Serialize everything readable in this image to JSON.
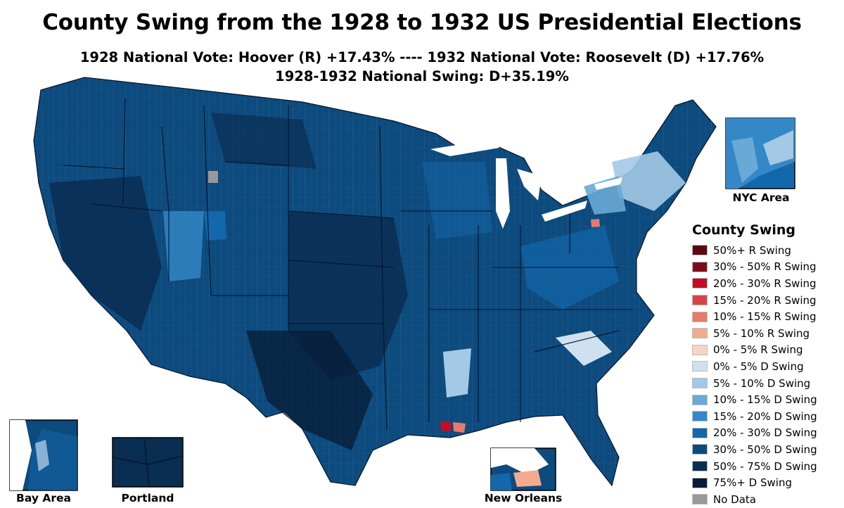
{
  "title": "County Swing from the 1928 to 1932 US Presidential Elections",
  "subtitle_line1": "1928 National Vote: Hoover (R) +17.43% ---- 1932 National Vote: Roosevelt (D) +17.76%",
  "subtitle_line2": "1928-1932 National Swing: D+35.19%",
  "legend": {
    "title": "County Swing",
    "items": [
      {
        "label": "50%+ R Swing",
        "color": "#5a0b12"
      },
      {
        "label": "30% - 50% R Swing",
        "color": "#7d0d1a"
      },
      {
        "label": "20% - 30% R Swing",
        "color": "#c40d24"
      },
      {
        "label": "15% - 20% R Swing",
        "color": "#d8434a"
      },
      {
        "label": "10% - 15% R Swing",
        "color": "#e57b6b"
      },
      {
        "label": "5% - 10% R Swing",
        "color": "#f2ab90"
      },
      {
        "label": "0% - 5% R Swing",
        "color": "#f8d4c6"
      },
      {
        "label": "0% - 5% D Swing",
        "color": "#cfe1f0"
      },
      {
        "label": "5% - 10% D Swing",
        "color": "#a3c9e6"
      },
      {
        "label": "10% - 15% D Swing",
        "color": "#6aa9d5"
      },
      {
        "label": "15% - 20% D Swing",
        "color": "#3488c8"
      },
      {
        "label": "20% - 30% D Swing",
        "color": "#1367ab"
      },
      {
        "label": "30% - 50% D Swing",
        "color": "#0d4a7d"
      },
      {
        "label": "50% - 75% D Swing",
        "color": "#0a2d52"
      },
      {
        "label": "75%+ D Swing",
        "color": "#071c36"
      },
      {
        "label": "No Data",
        "color": "#999999"
      }
    ]
  },
  "insets": {
    "nyc": "NYC Area",
    "bay_area": "Bay Area",
    "portland": "Portland",
    "new_orleans": "New Orleans"
  }
}
